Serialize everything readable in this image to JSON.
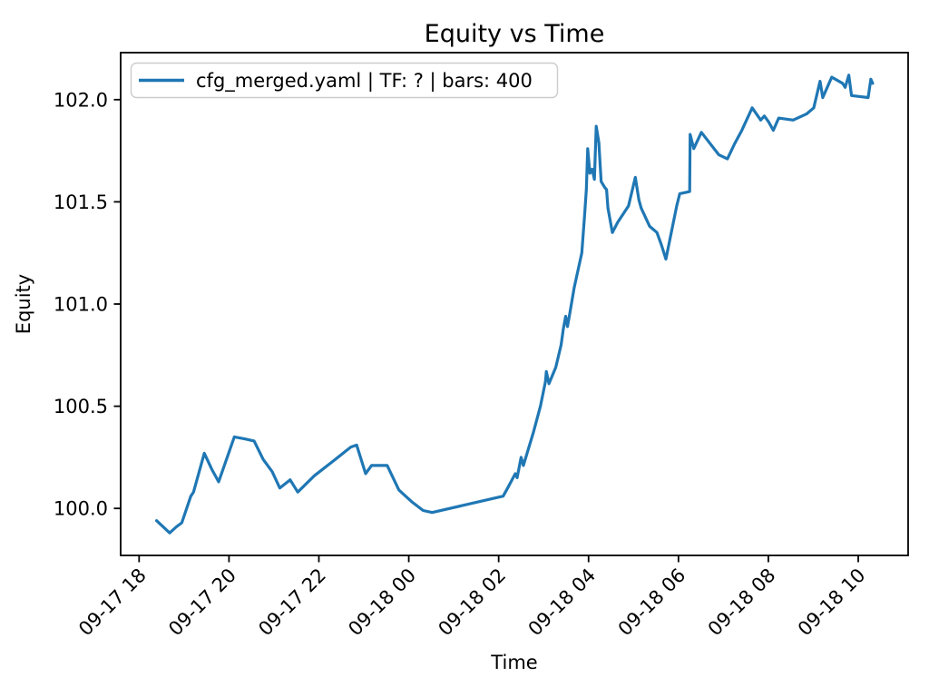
{
  "figure": {
    "background": "#ffffff",
    "spine_color": "#000000",
    "text_color": "#000000"
  },
  "chart_data": {
    "type": "line",
    "title": "Equity vs Time",
    "xlabel": "Time",
    "ylabel": "Equity",
    "grid": false,
    "legend": {
      "position": "upper left",
      "border_color": "#cccccc",
      "entries": [
        {
          "label": "cfg_merged.yaml | TF: ? | bars: 400",
          "color": "#1f77b4"
        }
      ]
    },
    "x_unit": "hours since 09-17 18:00",
    "xlim_hours": [
      -0.41,
      17.11
    ],
    "ylim": [
      99.77,
      102.23
    ],
    "xticks": {
      "rotation_deg": 45,
      "hours": [
        0,
        2,
        4,
        6,
        8,
        10,
        12,
        14,
        16
      ],
      "labels": [
        "09-17 18",
        "09-17 20",
        "09-17 22",
        "09-18 00",
        "09-18 02",
        "09-18 04",
        "09-18 06",
        "09-18 08",
        "09-18 10"
      ]
    },
    "yticks": {
      "values": [
        100.0,
        100.5,
        101.0,
        101.5,
        102.0
      ],
      "labels": [
        "100.0",
        "100.5",
        "101.0",
        "101.5",
        "102.0"
      ]
    },
    "series": [
      {
        "name": "cfg_merged.yaml | TF: ? | bars: 400",
        "color": "#1f77b4",
        "line_width": 3.2,
        "points": [
          [
            0.39,
            99.94
          ],
          [
            0.68,
            99.88
          ],
          [
            0.83,
            99.91
          ],
          [
            0.95,
            99.93
          ],
          [
            1.15,
            100.06
          ],
          [
            1.21,
            100.08
          ],
          [
            1.45,
            100.27
          ],
          [
            1.62,
            100.19
          ],
          [
            1.77,
            100.13
          ],
          [
            2.12,
            100.35
          ],
          [
            2.35,
            100.34
          ],
          [
            2.56,
            100.33
          ],
          [
            2.76,
            100.24
          ],
          [
            2.96,
            100.18
          ],
          [
            3.13,
            100.1
          ],
          [
            3.36,
            100.14
          ],
          [
            3.53,
            100.08
          ],
          [
            3.9,
            100.16
          ],
          [
            4.31,
            100.23
          ],
          [
            4.71,
            100.3
          ],
          [
            4.84,
            100.31
          ],
          [
            5.04,
            100.17
          ],
          [
            5.17,
            100.21
          ],
          [
            5.52,
            100.21
          ],
          [
            5.78,
            100.09
          ],
          [
            6.08,
            100.03
          ],
          [
            6.32,
            99.99
          ],
          [
            6.52,
            99.98
          ],
          [
            8.1,
            100.06
          ],
          [
            8.2,
            100.1
          ],
          [
            8.37,
            100.17
          ],
          [
            8.41,
            100.15
          ],
          [
            8.5,
            100.25
          ],
          [
            8.55,
            100.21
          ],
          [
            8.77,
            100.37
          ],
          [
            8.93,
            100.5
          ],
          [
            9.04,
            100.62
          ],
          [
            9.06,
            100.67
          ],
          [
            9.12,
            100.61
          ],
          [
            9.27,
            100.69
          ],
          [
            9.39,
            100.8
          ],
          [
            9.44,
            100.88
          ],
          [
            9.49,
            100.94
          ],
          [
            9.53,
            100.89
          ],
          [
            9.58,
            100.95
          ],
          [
            9.68,
            101.08
          ],
          [
            9.85,
            101.25
          ],
          [
            9.91,
            101.43
          ],
          [
            9.95,
            101.56
          ],
          [
            9.98,
            101.76
          ],
          [
            10.03,
            101.64
          ],
          [
            10.08,
            101.66
          ],
          [
            10.13,
            101.61
          ],
          [
            10.17,
            101.87
          ],
          [
            10.23,
            101.79
          ],
          [
            10.28,
            101.6
          ],
          [
            10.36,
            101.57
          ],
          [
            10.4,
            101.56
          ],
          [
            10.43,
            101.47
          ],
          [
            10.53,
            101.35
          ],
          [
            10.65,
            101.4
          ],
          [
            10.89,
            101.48
          ],
          [
            11.04,
            101.62
          ],
          [
            11.12,
            101.51
          ],
          [
            11.17,
            101.47
          ],
          [
            11.36,
            101.38
          ],
          [
            11.52,
            101.35
          ],
          [
            11.62,
            101.29
          ],
          [
            11.72,
            101.22
          ],
          [
            11.96,
            101.48
          ],
          [
            12.03,
            101.54
          ],
          [
            12.25,
            101.55
          ],
          [
            12.26,
            101.83
          ],
          [
            12.34,
            101.76
          ],
          [
            12.51,
            101.84
          ],
          [
            12.58,
            101.82
          ],
          [
            12.9,
            101.73
          ],
          [
            13.09,
            101.71
          ],
          [
            13.24,
            101.78
          ],
          [
            13.41,
            101.85
          ],
          [
            13.64,
            101.96
          ],
          [
            13.83,
            101.9
          ],
          [
            13.91,
            101.92
          ],
          [
            14.01,
            101.89
          ],
          [
            14.11,
            101.85
          ],
          [
            14.23,
            101.91
          ],
          [
            14.55,
            101.9
          ],
          [
            14.85,
            101.93
          ],
          [
            15.01,
            101.96
          ],
          [
            15.15,
            102.09
          ],
          [
            15.21,
            102.01
          ],
          [
            15.41,
            102.11
          ],
          [
            15.65,
            102.08
          ],
          [
            15.71,
            102.06
          ],
          [
            15.79,
            102.12
          ],
          [
            15.85,
            102.02
          ],
          [
            16.22,
            102.01
          ],
          [
            16.28,
            102.1
          ],
          [
            16.32,
            102.08
          ]
        ]
      }
    ]
  }
}
